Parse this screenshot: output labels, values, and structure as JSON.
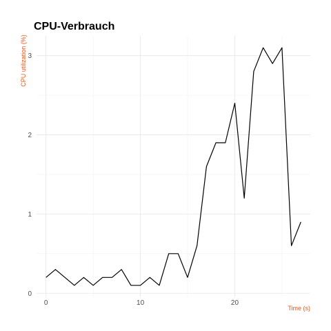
{
  "chart_data": {
    "type": "line",
    "title": "CPU-Verbrauch",
    "xlabel": "Time (s)",
    "ylabel": "CPU utilization (%)",
    "xlim": [
      -1,
      28
    ],
    "ylim": [
      -0.05,
      3.25
    ],
    "xticks": [
      0,
      10,
      20
    ],
    "yticks": [
      0,
      1,
      2,
      3
    ],
    "grid": true,
    "label_color": "#e8541a",
    "line_color": "#000000",
    "series": [
      {
        "x": [
          0,
          1,
          2,
          3,
          4,
          5,
          6,
          7,
          8,
          9,
          10,
          11,
          12,
          13,
          14,
          15,
          16,
          17,
          18,
          19,
          20,
          21,
          22,
          23,
          24,
          25,
          26,
          27
        ],
        "values": [
          0.2,
          0.3,
          0.2,
          0.1,
          0.2,
          0.1,
          0.2,
          0.2,
          0.3,
          0.1,
          0.1,
          0.2,
          0.1,
          0.5,
          0.5,
          0.2,
          0.6,
          1.6,
          1.9,
          1.9,
          2.4,
          1.2,
          2.8,
          3.1,
          2.9,
          3.1,
          0.6,
          0.9
        ]
      }
    ]
  }
}
